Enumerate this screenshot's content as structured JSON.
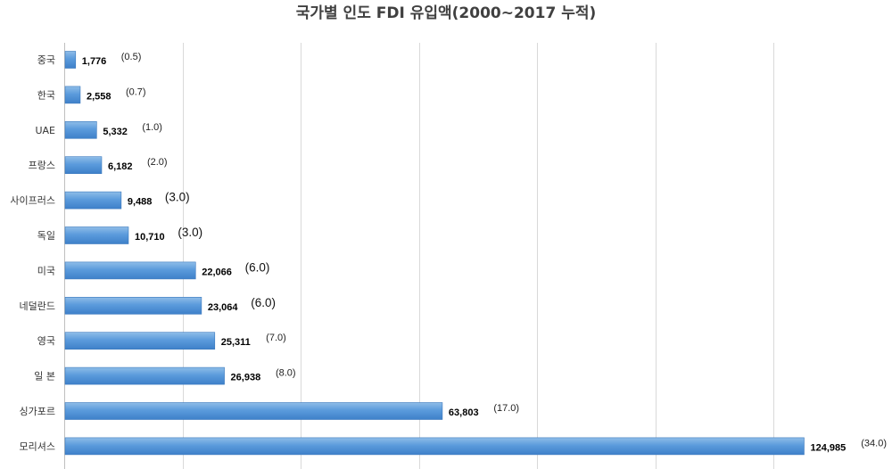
{
  "chart_data": {
    "type": "bar",
    "orientation": "horizontal",
    "title": "국가별 인도 FDI 유입액(2000~2017 누적)",
    "categories": [
      "중국",
      "한국",
      "UAE",
      "프랑스",
      "사이프러스",
      "독일",
      "미국",
      "네덜란드",
      "영국",
      "일 본",
      "싱가포르",
      "모리셔스"
    ],
    "values": [
      1776,
      2558,
      5332,
      6182,
      9488,
      10710,
      22066,
      23064,
      25311,
      26938,
      63803,
      124985
    ],
    "value_labels": [
      "1,776",
      "2,558",
      "5,332",
      "6,182",
      "9,488",
      "10,710",
      "22,066",
      "23,064",
      "25,311",
      "26,938",
      "63,803",
      "124,985"
    ],
    "share_labels": [
      "(0.5)",
      "(0.7)",
      "(1.0)",
      "(2.0)",
      "(3.0)",
      "(3.0)",
      "(6.0)",
      "(6.0)",
      "(7.0)",
      "(8.0)",
      "(17.0)",
      "(34.0)"
    ],
    "share_large": [
      false,
      false,
      false,
      false,
      true,
      true,
      true,
      true,
      false,
      false,
      false,
      false
    ],
    "xlim": [
      0,
      140000
    ],
    "x_tick_step": 20000,
    "grid": true,
    "legend": "none",
    "colors": {
      "bar_top": "#8fbde8",
      "bar_bottom": "#3e80c9",
      "bar_stroke": "#3a78bd"
    }
  }
}
